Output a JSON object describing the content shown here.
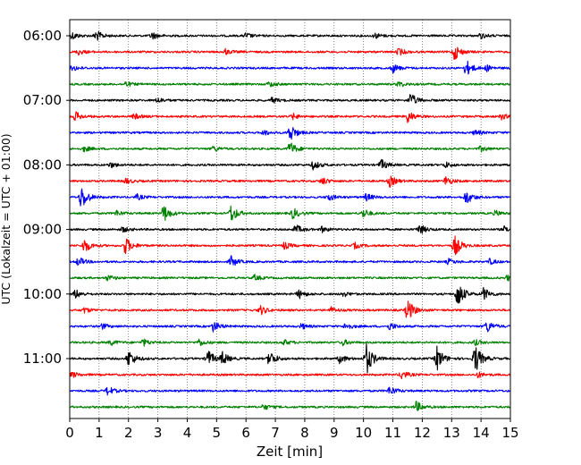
{
  "chart_data": {
    "type": "line",
    "chart_kind": "helicorder seismogram",
    "xlabel": "Zeit  [min]",
    "ylabel": "UTC (Lokalzeit = UTC + 01:00)",
    "xlim": [
      0,
      15
    ],
    "x_ticks": [
      0,
      1,
      2,
      3,
      4,
      5,
      6,
      7,
      8,
      9,
      10,
      11,
      12,
      13,
      14,
      15
    ],
    "x_tick_labels": [
      "0",
      "1",
      "2",
      "3",
      "4",
      "5",
      "6",
      "7",
      "8",
      "9",
      "10",
      "11",
      "12",
      "13",
      "14",
      "15"
    ],
    "x_grid": "dotted vertical lines at every minute",
    "y_tick_labels": [
      "06:00",
      "07:00",
      "08:00",
      "09:00",
      "10:00",
      "11:00"
    ],
    "line_interval_min": 15,
    "trace_count": 24,
    "trace_colors": [
      "#000000",
      "#ff0000",
      "#0000ff",
      "#008000"
    ],
    "traces": [
      {
        "index": 0,
        "events": [
          {
            "t": 0.1,
            "amp": 4
          },
          {
            "t": 0.9,
            "amp": 6
          },
          {
            "t": 2.8,
            "amp": 4
          },
          {
            "t": 6.0,
            "amp": 3
          },
          {
            "t": 10.4,
            "amp": 3
          },
          {
            "t": 14.0,
            "amp": 3
          }
        ]
      },
      {
        "index": 1,
        "events": [
          {
            "t": 0.3,
            "amp": 3
          },
          {
            "t": 5.3,
            "amp": 3
          },
          {
            "t": 11.2,
            "amp": 4
          },
          {
            "t": 13.1,
            "amp": 9
          }
        ]
      },
      {
        "index": 2,
        "events": [
          {
            "t": 0.1,
            "amp": 3
          },
          {
            "t": 11.0,
            "amp": 5
          },
          {
            "t": 13.5,
            "amp": 9
          },
          {
            "t": 14.2,
            "amp": 3
          }
        ]
      },
      {
        "index": 3,
        "events": [
          {
            "t": 1.9,
            "amp": 3
          },
          {
            "t": 6.8,
            "amp": 3
          },
          {
            "t": 11.2,
            "amp": 3
          }
        ]
      },
      {
        "index": 4,
        "events": [
          {
            "t": 3.0,
            "amp": 3
          },
          {
            "t": 6.9,
            "amp": 3
          },
          {
            "t": 11.6,
            "amp": 8
          }
        ]
      },
      {
        "index": 5,
        "events": [
          {
            "t": 0.2,
            "amp": 5
          },
          {
            "t": 2.2,
            "amp": 3
          },
          {
            "t": 7.6,
            "amp": 3
          },
          {
            "t": 11.5,
            "amp": 7
          },
          {
            "t": 14.7,
            "amp": 3
          }
        ]
      },
      {
        "index": 6,
        "events": [
          {
            "t": 6.6,
            "amp": 3
          },
          {
            "t": 7.5,
            "amp": 10
          },
          {
            "t": 13.8,
            "amp": 3
          }
        ]
      },
      {
        "index": 7,
        "events": [
          {
            "t": 0.5,
            "amp": 3
          },
          {
            "t": 4.9,
            "amp": 3
          },
          {
            "t": 7.5,
            "amp": 8
          },
          {
            "t": 14.0,
            "amp": 3
          }
        ]
      },
      {
        "index": 8,
        "events": [
          {
            "t": 1.4,
            "amp": 3
          },
          {
            "t": 8.3,
            "amp": 5
          },
          {
            "t": 10.6,
            "amp": 6
          },
          {
            "t": 12.8,
            "amp": 3
          }
        ]
      },
      {
        "index": 9,
        "events": [
          {
            "t": 1.9,
            "amp": 3
          },
          {
            "t": 8.6,
            "amp": 4
          },
          {
            "t": 10.9,
            "amp": 6
          },
          {
            "t": 12.8,
            "amp": 5
          }
        ]
      },
      {
        "index": 10,
        "events": [
          {
            "t": 0.4,
            "amp": 14
          },
          {
            "t": 2.3,
            "amp": 3
          },
          {
            "t": 8.8,
            "amp": 4
          },
          {
            "t": 10.1,
            "amp": 4
          },
          {
            "t": 13.5,
            "amp": 8
          }
        ]
      },
      {
        "index": 11,
        "events": [
          {
            "t": 1.6,
            "amp": 3
          },
          {
            "t": 3.2,
            "amp": 10
          },
          {
            "t": 5.5,
            "amp": 10
          },
          {
            "t": 7.6,
            "amp": 6
          },
          {
            "t": 10.0,
            "amp": 5
          },
          {
            "t": 14.5,
            "amp": 3
          }
        ]
      },
      {
        "index": 12,
        "events": [
          {
            "t": 1.8,
            "amp": 3
          },
          {
            "t": 7.7,
            "amp": 5
          },
          {
            "t": 8.6,
            "amp": 3
          },
          {
            "t": 11.9,
            "amp": 6
          },
          {
            "t": 14.8,
            "amp": 3
          }
        ]
      },
      {
        "index": 13,
        "events": [
          {
            "t": 0.5,
            "amp": 8
          },
          {
            "t": 1.9,
            "amp": 10
          },
          {
            "t": 7.3,
            "amp": 4
          },
          {
            "t": 9.7,
            "amp": 3
          },
          {
            "t": 13.1,
            "amp": 12
          }
        ]
      },
      {
        "index": 14,
        "events": [
          {
            "t": 0.3,
            "amp": 5
          },
          {
            "t": 5.5,
            "amp": 6
          },
          {
            "t": 12.9,
            "amp": 3
          },
          {
            "t": 14.3,
            "amp": 3
          }
        ]
      },
      {
        "index": 15,
        "events": [
          {
            "t": 1.3,
            "amp": 3
          },
          {
            "t": 6.3,
            "amp": 3
          },
          {
            "t": 14.9,
            "amp": 3
          }
        ]
      },
      {
        "index": 16,
        "events": [
          {
            "t": 0.2,
            "amp": 5
          },
          {
            "t": 7.8,
            "amp": 5
          },
          {
            "t": 9.3,
            "amp": 3
          },
          {
            "t": 13.2,
            "amp": 16
          },
          {
            "t": 14.1,
            "amp": 7
          }
        ]
      },
      {
        "index": 17,
        "events": [
          {
            "t": 0.5,
            "amp": 3
          },
          {
            "t": 6.5,
            "amp": 5
          },
          {
            "t": 8.9,
            "amp": 3
          },
          {
            "t": 11.5,
            "amp": 13
          }
        ]
      },
      {
        "index": 18,
        "events": [
          {
            "t": 1.1,
            "amp": 3
          },
          {
            "t": 4.9,
            "amp": 6
          },
          {
            "t": 7.9,
            "amp": 3
          },
          {
            "t": 9.4,
            "amp": 4
          },
          {
            "t": 10.9,
            "amp": 4
          },
          {
            "t": 14.2,
            "amp": 7
          }
        ]
      },
      {
        "index": 19,
        "events": [
          {
            "t": 1.4,
            "amp": 3
          },
          {
            "t": 2.5,
            "amp": 4
          },
          {
            "t": 4.4,
            "amp": 4
          },
          {
            "t": 7.3,
            "amp": 3
          },
          {
            "t": 9.3,
            "amp": 3
          },
          {
            "t": 13.8,
            "amp": 3
          }
        ]
      },
      {
        "index": 20,
        "events": [
          {
            "t": 2.0,
            "amp": 10
          },
          {
            "t": 4.7,
            "amp": 10
          },
          {
            "t": 5.2,
            "amp": 7
          },
          {
            "t": 6.8,
            "amp": 9
          },
          {
            "t": 9.2,
            "amp": 5
          },
          {
            "t": 10.1,
            "amp": 18
          },
          {
            "t": 12.5,
            "amp": 14
          },
          {
            "t": 13.8,
            "amp": 17
          }
        ]
      },
      {
        "index": 21,
        "events": [
          {
            "t": 0.1,
            "amp": 3
          },
          {
            "t": 11.3,
            "amp": 5
          },
          {
            "t": 13.9,
            "amp": 3
          }
        ]
      },
      {
        "index": 22,
        "events": [
          {
            "t": 1.3,
            "amp": 5
          },
          {
            "t": 10.9,
            "amp": 5
          }
        ]
      },
      {
        "index": 23,
        "events": [
          {
            "t": 6.6,
            "amp": 3
          },
          {
            "t": 11.8,
            "amp": 6
          }
        ]
      }
    ]
  }
}
